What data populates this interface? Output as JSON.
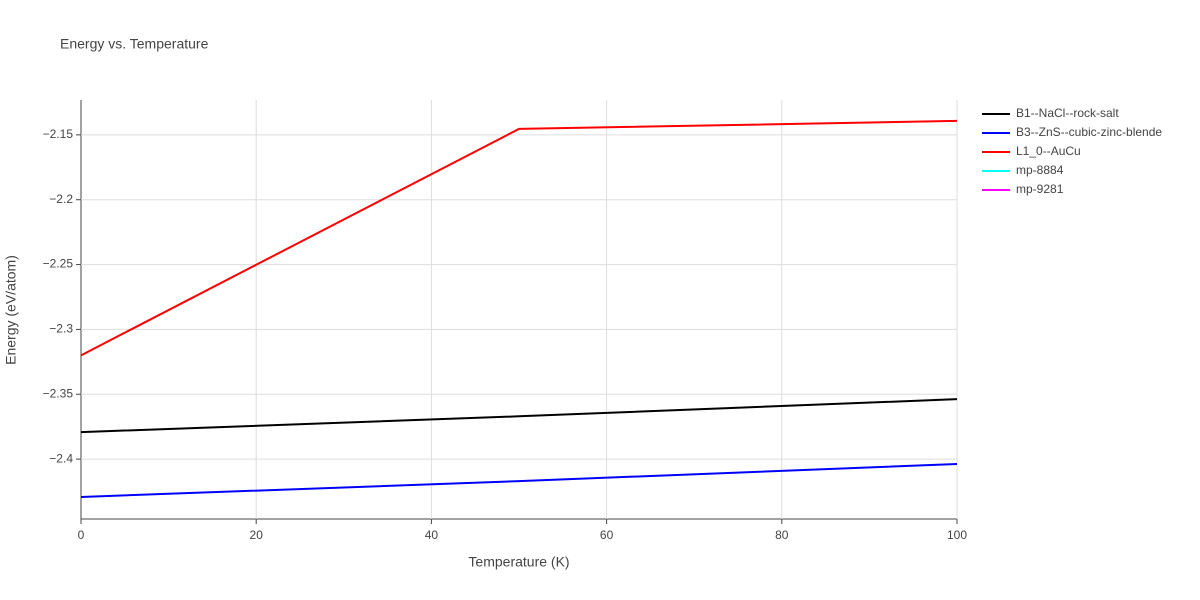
{
  "chart_data": {
    "type": "line",
    "title": "Energy vs. Temperature",
    "x_label": "Temperature (K)",
    "y_label": "Energy (eV/atom)",
    "x": [
      0,
      50,
      100
    ],
    "series": [
      {
        "name": "B1--NaCl--rock-salt",
        "color": "#000000",
        "values": [
          -2.3792,
          -2.367,
          -2.3538
        ]
      },
      {
        "name": "B3--ZnS--cubic-zinc-blende",
        "color": "#0000ff",
        "values": [
          -2.4292,
          -2.417,
          -2.4038
        ]
      },
      {
        "name": "L1_0--AuCu",
        "color": "#ff0000",
        "values": [
          -2.32,
          -2.1454,
          -2.1392
        ]
      },
      {
        "name": "mp-8884",
        "color": "#00ffff",
        "values": [
          null,
          null,
          null
        ]
      },
      {
        "name": "mp-9281",
        "color": "#ff00ff",
        "values": [
          null,
          null,
          null
        ]
      }
    ],
    "xlim": [
      0,
      100
    ],
    "xticks": [
      0,
      20,
      40,
      60,
      80,
      100
    ],
    "ylim": [
      -2.4462,
      -2.1231
    ],
    "yticks": [
      {
        "value": -2.4,
        "label": "−2.4"
      },
      {
        "value": -2.35,
        "label": "−2.35"
      },
      {
        "value": -2.3,
        "label": "−2.3"
      },
      {
        "value": -2.25,
        "label": "−2.25"
      },
      {
        "value": -2.2,
        "label": "−2.2"
      },
      {
        "value": -2.15,
        "label": "−2.15"
      }
    ],
    "grid": true,
    "legend": "right"
  }
}
